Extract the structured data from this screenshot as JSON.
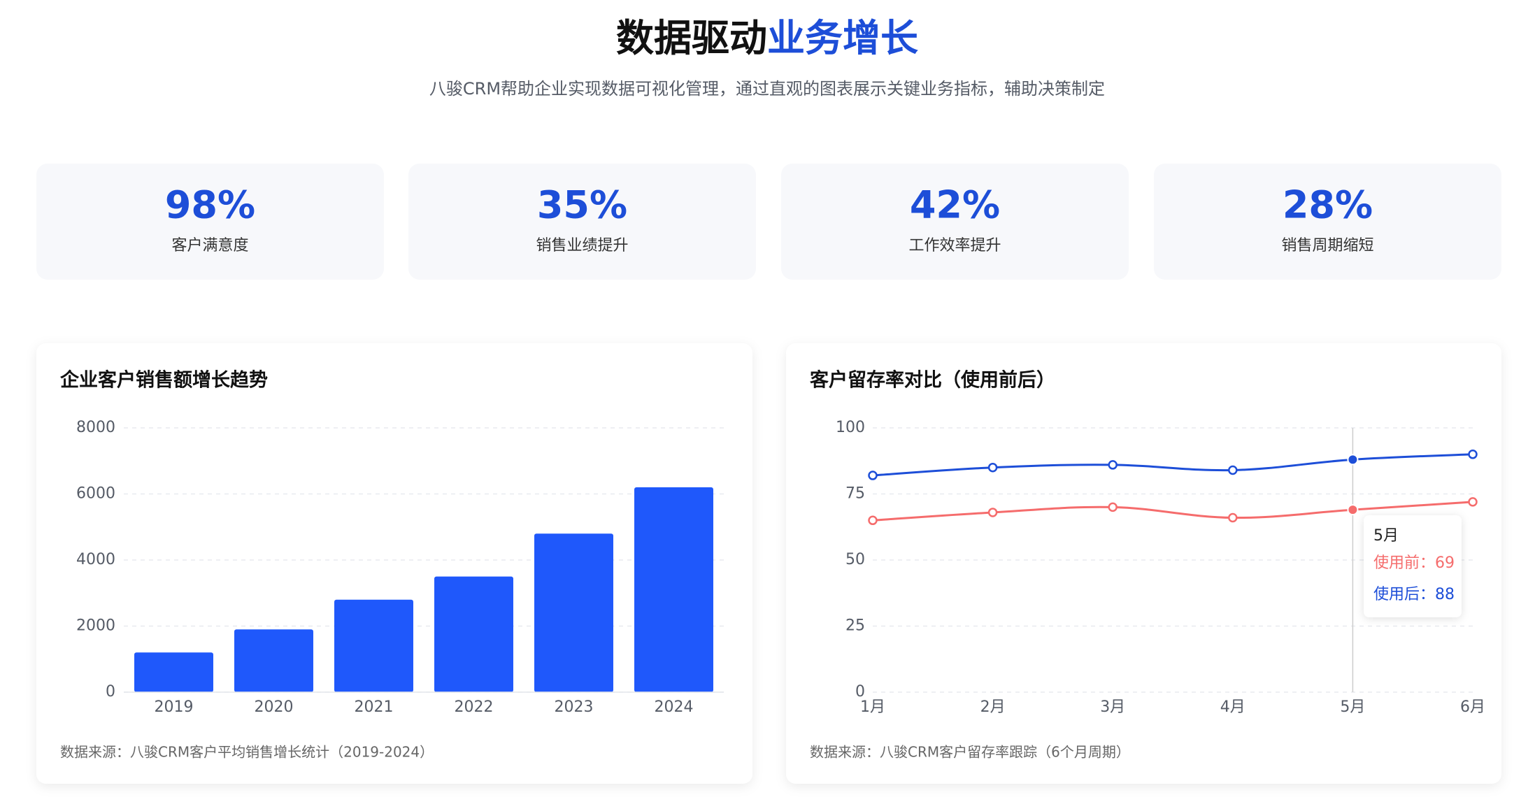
{
  "header": {
    "title_dark": "数据驱动",
    "title_accent": "业务增长",
    "subtitle": "八骏CRM帮助企业实现数据可视化管理，通过直观的图表展示关键业务指标，辅助决策制定"
  },
  "stats": [
    {
      "value": "98%",
      "label": "客户满意度"
    },
    {
      "value": "35%",
      "label": "销售业绩提升"
    },
    {
      "value": "42%",
      "label": "工作效率提升"
    },
    {
      "value": "28%",
      "label": "销售周期缩短"
    }
  ],
  "chart_data": [
    {
      "type": "bar",
      "title": "企业客户销售额增长趋势",
      "categories": [
        "2019",
        "2020",
        "2021",
        "2022",
        "2023",
        "2024"
      ],
      "values": [
        1200,
        1900,
        2800,
        3500,
        4800,
        6200
      ],
      "color": "#1f58fb",
      "ylim": [
        0,
        8000
      ],
      "yticks": [
        0,
        2000,
        4000,
        6000,
        8000
      ],
      "grid": true,
      "source": "数据来源：八骏CRM客户平均销售增长统计（2019-2024）"
    },
    {
      "type": "line",
      "title": "客户留存率对比（使用前后）",
      "categories": [
        "1月",
        "2月",
        "3月",
        "4月",
        "5月",
        "6月"
      ],
      "series": [
        {
          "name": "使用前",
          "color": "#f56c6c",
          "values": [
            65,
            68,
            70,
            66,
            69,
            72
          ]
        },
        {
          "name": "使用后",
          "color": "#1d4ed8",
          "values": [
            82,
            85,
            86,
            84,
            88,
            90
          ]
        }
      ],
      "ylim": [
        0,
        100
      ],
      "yticks": [
        0,
        25,
        50,
        75,
        100
      ],
      "grid": true,
      "tooltip": {
        "category": "5月",
        "separator": "："
      },
      "source": "数据来源：八骏CRM客户留存率跟踪（6个月周期）"
    }
  ]
}
